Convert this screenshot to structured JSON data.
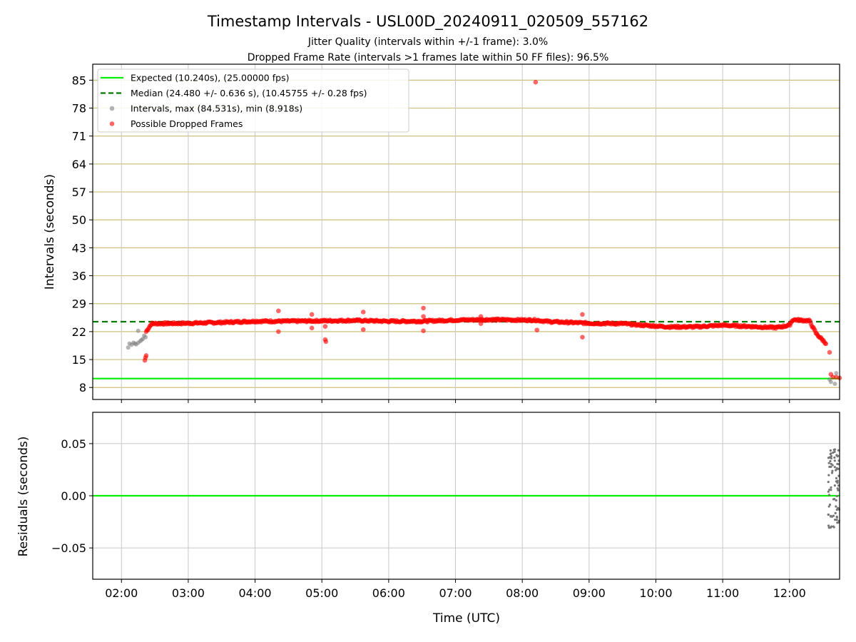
{
  "chart_data": [
    {
      "type": "scatter",
      "title": "Timestamp Intervals - USL00D_20240911_020509_557162",
      "subtitle_lines": [
        "Jitter Quality (intervals within +/-1 frame): 3.0%",
        "Dropped Frame Rate (intervals >1 frames late within 50 FF files): 96.5%"
      ],
      "ylabel": "Intervals (seconds)",
      "ylim": [
        5,
        89
      ],
      "yticks": [
        8,
        15,
        22,
        29,
        36,
        43,
        50,
        57,
        64,
        71,
        78,
        85
      ],
      "xlim_hours": [
        1.57,
        12.75
      ],
      "xticks": [
        {
          "h": 2,
          "label": "02:00"
        },
        {
          "h": 3,
          "label": "03:00"
        },
        {
          "h": 4,
          "label": "04:00"
        },
        {
          "h": 5,
          "label": "05:00"
        },
        {
          "h": 6,
          "label": "06:00"
        },
        {
          "h": 7,
          "label": "07:00"
        },
        {
          "h": 8,
          "label": "08:00"
        },
        {
          "h": 9,
          "label": "09:00"
        },
        {
          "h": 10,
          "label": "10:00"
        },
        {
          "h": 11,
          "label": "11:00"
        },
        {
          "h": 12,
          "label": "12:00"
        }
      ],
      "grid": true,
      "legend_position": "top-left",
      "legend": [
        {
          "label": "Expected (10.240s), (25.00000 fps)",
          "style": "solid-line",
          "color": "#00ee00"
        },
        {
          "label": "Median (24.480 +/- 0.636 s), (10.45755 +/- 0.28 fps)",
          "style": "dashed-line",
          "color": "#007a00"
        },
        {
          "label": "Intervals, max (84.531s), min (8.918s)",
          "style": "marker",
          "color": "#808080"
        },
        {
          "label": "Possible Dropped Frames",
          "style": "marker",
          "color": "#ff0000"
        }
      ],
      "expected_interval": 10.24,
      "median_interval": 24.48,
      "dropped_frames_trend": [
        [
          2.37,
          22.0
        ],
        [
          2.45,
          24.0
        ],
        [
          3.0,
          24.1
        ],
        [
          3.5,
          24.3
        ],
        [
          4.0,
          24.6
        ],
        [
          4.5,
          24.6
        ],
        [
          5.0,
          24.7
        ],
        [
          5.5,
          24.8
        ],
        [
          6.0,
          24.6
        ],
        [
          6.5,
          24.6
        ],
        [
          7.0,
          24.9
        ],
        [
          7.5,
          25.0
        ],
        [
          8.0,
          24.9
        ],
        [
          8.2,
          24.9
        ],
        [
          8.4,
          24.5
        ],
        [
          9.0,
          24.1
        ],
        [
          9.5,
          24.0
        ],
        [
          9.8,
          23.6
        ],
        [
          10.2,
          23.2
        ],
        [
          10.6,
          23.2
        ],
        [
          11.0,
          23.6
        ],
        [
          11.4,
          23.3
        ],
        [
          11.8,
          23.0
        ],
        [
          12.0,
          23.6
        ],
        [
          12.05,
          25.0
        ],
        [
          12.3,
          24.7
        ],
        [
          12.4,
          21.5
        ],
        [
          12.55,
          19.0
        ]
      ],
      "dropped_frames_outliers": [
        [
          2.36,
          15.5
        ],
        [
          2.37,
          16.0
        ],
        [
          2.35,
          14.8
        ],
        [
          4.35,
          27.2
        ],
        [
          4.35,
          22.0
        ],
        [
          4.85,
          26.3
        ],
        [
          4.85,
          22.9
        ],
        [
          5.05,
          23.3
        ],
        [
          5.05,
          20.0
        ],
        [
          5.06,
          19.5
        ],
        [
          5.62,
          26.9
        ],
        [
          5.62,
          22.5
        ],
        [
          6.52,
          27.9
        ],
        [
          6.52,
          25.8
        ],
        [
          6.52,
          22.2
        ],
        [
          7.38,
          24.0
        ],
        [
          7.38,
          25.8
        ],
        [
          8.2,
          84.5
        ],
        [
          8.22,
          22.4
        ],
        [
          8.9,
          26.3
        ],
        [
          8.9,
          20.6
        ],
        [
          12.6,
          16.8
        ],
        [
          12.62,
          11.3
        ],
        [
          12.65,
          10.6
        ],
        [
          12.7,
          10.6
        ],
        [
          12.75,
          10.4
        ]
      ],
      "intervals_gray": [
        [
          2.1,
          18.0
        ],
        [
          2.12,
          19.0
        ],
        [
          2.15,
          18.7
        ],
        [
          2.18,
          19.2
        ],
        [
          2.2,
          19.0
        ],
        [
          2.22,
          18.8
        ],
        [
          2.25,
          22.2
        ],
        [
          2.25,
          19.2
        ],
        [
          2.28,
          19.6
        ],
        [
          2.3,
          19.9
        ],
        [
          2.32,
          20.2
        ],
        [
          2.34,
          21.0
        ],
        [
          2.36,
          20.6
        ],
        [
          12.6,
          10.0
        ],
        [
          12.62,
          9.4
        ],
        [
          12.68,
          8.9
        ],
        [
          12.7,
          11.6
        ]
      ]
    },
    {
      "type": "scatter",
      "ylabel": "Residuals (seconds)",
      "xlabel": "Time (UTC)",
      "ylim": [
        -0.08,
        0.08
      ],
      "yticks": [
        {
          "v": 0.05,
          "label": "0.05"
        },
        {
          "v": 0.0,
          "label": "0.00"
        },
        {
          "v": -0.05,
          "label": "−0.05"
        }
      ],
      "zero_line_color": "#00ee00",
      "residual_x_range_hours": [
        12.58,
        12.75
      ],
      "residual_range": [
        -0.031,
        0.045
      ]
    }
  ]
}
